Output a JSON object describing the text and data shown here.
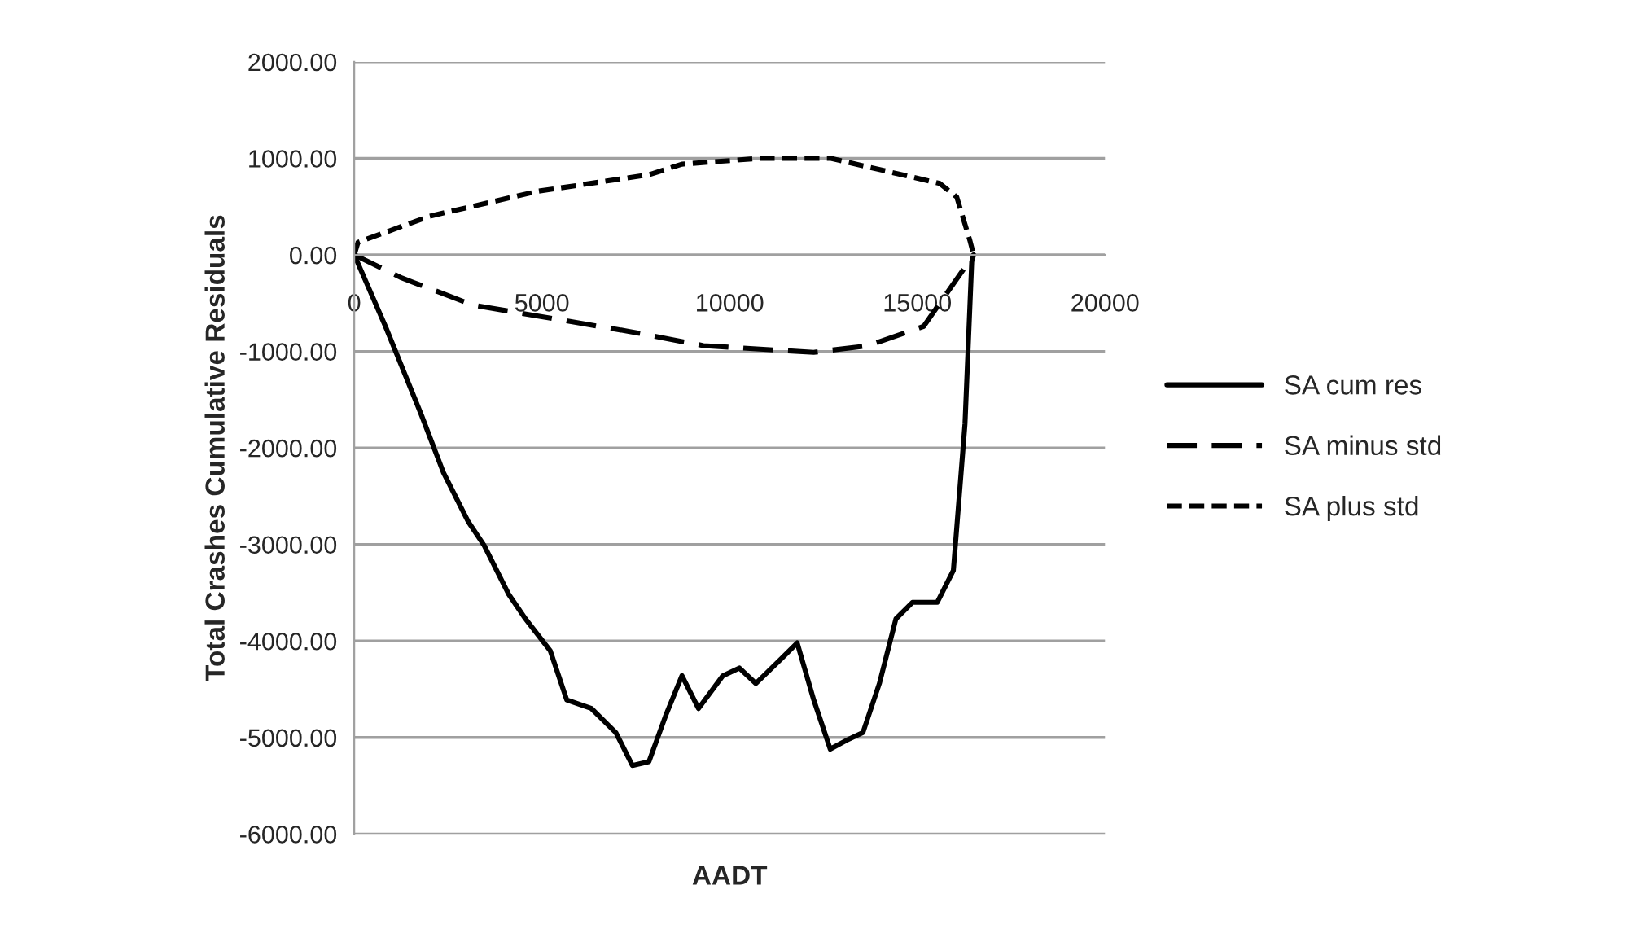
{
  "chart_data": {
    "type": "line",
    "xlabel": "AADT",
    "ylabel": "Total Crashes Cumulative Residuals",
    "xlim": [
      0,
      20000
    ],
    "xticks": [
      0,
      5000,
      10000,
      15000,
      20000
    ],
    "ylim": [
      -6000,
      2000
    ],
    "yticks": [
      {
        "value": -6000,
        "label": "-6000.00"
      },
      {
        "value": -5000,
        "label": "-5000.00"
      },
      {
        "value": -4000,
        "label": "-4000.00"
      },
      {
        "value": -3000,
        "label": "-3000.00"
      },
      {
        "value": -2000,
        "label": "-2000.00"
      },
      {
        "value": -1000,
        "label": "-1000.00"
      },
      {
        "value": 0,
        "label": "0.00"
      },
      {
        "value": 1000,
        "label": "1000.00"
      },
      {
        "value": 2000,
        "label": "2000.00"
      }
    ],
    "grid": "y",
    "legend": "right",
    "marker": "none",
    "series": [
      {
        "name": "SA cum res",
        "color": "#000000",
        "line_style": "solid",
        "x": [
          0,
          830,
          1270,
          1800,
          2370,
          3030,
          3460,
          4120,
          4560,
          5220,
          5660,
          6320,
          6970,
          7410,
          7850,
          8290,
          8730,
          9170,
          9820,
          10260,
          10700,
          11360,
          11800,
          12240,
          12680,
          13110,
          13550,
          13990,
          14430,
          14870,
          15530,
          15960,
          16270,
          16450,
          16500
        ],
        "values": [
          0,
          -740,
          -1160,
          -1670,
          -2250,
          -2760,
          -3010,
          -3520,
          -3770,
          -4100,
          -4610,
          -4700,
          -4950,
          -5290,
          -5250,
          -4780,
          -4360,
          -4700,
          -4360,
          -4280,
          -4440,
          -4190,
          -4020,
          -4610,
          -5120,
          -5030,
          -4950,
          -4440,
          -3770,
          -3600,
          -3600,
          -3270,
          -1750,
          -70,
          0
        ]
      },
      {
        "name": "SA minus std",
        "color": "#000000",
        "line_style": "dashed",
        "x": [
          0,
          1270,
          3160,
          7280,
          9300,
          12240,
          13700,
          15170,
          16500
        ],
        "values": [
          0,
          -240,
          -520,
          -790,
          -940,
          -1010,
          -940,
          -740,
          0
        ]
      },
      {
        "name": "SA plus std",
        "color": "#000000",
        "line_style": "dotted",
        "x": [
          0,
          100,
          2000,
          4900,
          7850,
          8730,
          10800,
          12700,
          13700,
          15600,
          16050,
          16400,
          16500
        ],
        "values": [
          0,
          130,
          400,
          660,
          830,
          940,
          1000,
          1000,
          910,
          740,
          600,
          150,
          0
        ]
      }
    ]
  }
}
